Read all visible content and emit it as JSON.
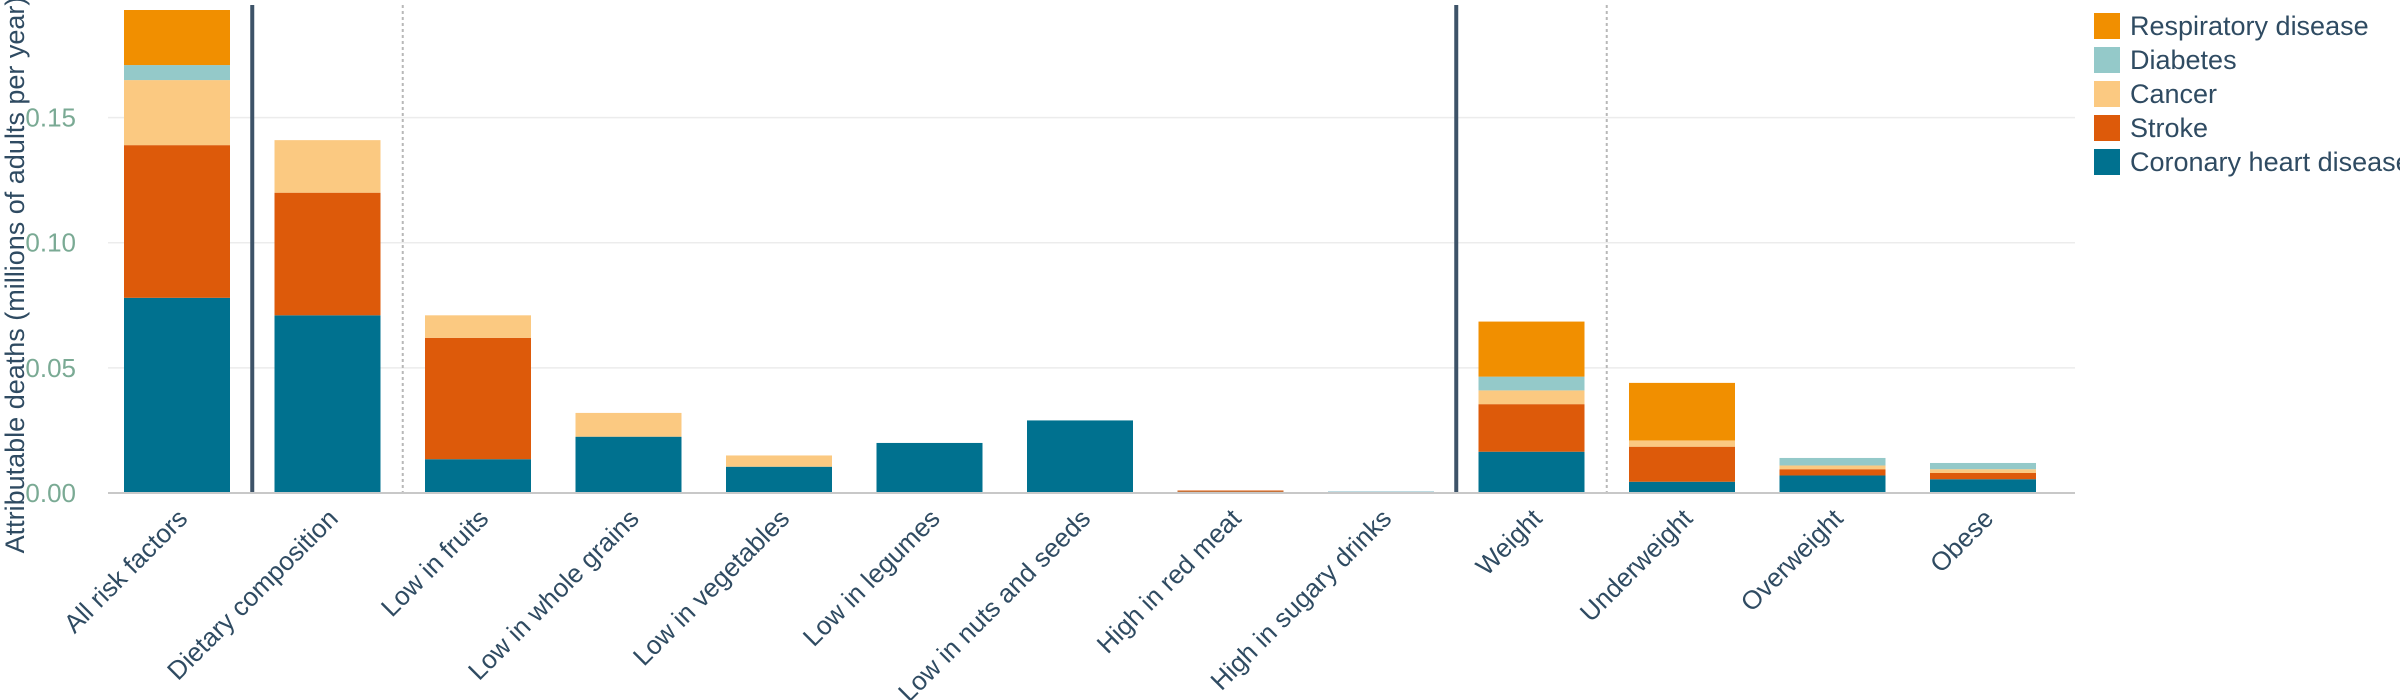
{
  "chart_data": {
    "type": "bar",
    "stacked": true,
    "title": "",
    "xlabel": "",
    "ylabel": "Attributable deaths (millions of adults per year)",
    "ylim": [
      0,
      0.195
    ],
    "yticks": [
      0,
      0.05,
      0.1,
      0.15
    ],
    "ytick_labels": [
      "0.00",
      "0.05",
      "0.10",
      "0.15"
    ],
    "grid": true,
    "legend_position": "top-right",
    "categories": [
      "All risk factors",
      "Dietary composition",
      "Low in fruits",
      "Low in whole grains",
      "Low in vegetables",
      "Low in legumes",
      "Low in nuts and seeds",
      "High in red meat",
      "High in sugary drinks",
      "Weight",
      "Underweight",
      "Overweight",
      "Obese"
    ],
    "series": [
      {
        "name": "Coronary heart disease",
        "color": "#00718f",
        "values": [
          0.078,
          0.071,
          0.0135,
          0.0225,
          0.0105,
          0.02,
          0.029,
          0.0005,
          0.0005,
          0.0165,
          0.0045,
          0.007,
          0.0055
        ]
      },
      {
        "name": "Stroke",
        "color": "#dd5a0a",
        "values": [
          0.061,
          0.049,
          0.0485,
          0,
          0,
          0,
          0,
          0.0005,
          0,
          0.019,
          0.014,
          0.0025,
          0.0025
        ]
      },
      {
        "name": "Cancer",
        "color": "#fbc981",
        "values": [
          0.026,
          0.021,
          0.009,
          0.0095,
          0.0045,
          0,
          0,
          0,
          0,
          0.0055,
          0.0025,
          0.0015,
          0.0015
        ]
      },
      {
        "name": "Diabetes",
        "color": "#94c9c9",
        "values": [
          0.006,
          0,
          0,
          0,
          0,
          0,
          0,
          0,
          0,
          0.0055,
          0,
          0.003,
          0.0025
        ]
      },
      {
        "name": "Respiratory disease",
        "color": "#f18f00",
        "values": [
          0.022,
          0,
          0,
          0,
          0,
          0,
          0,
          0,
          0,
          0.022,
          0.023,
          0,
          0
        ]
      }
    ],
    "separators": [
      {
        "after_index": 0,
        "style": "solid"
      },
      {
        "after_index": 1,
        "style": "dotted"
      },
      {
        "after_index": 8,
        "style": "solid"
      },
      {
        "after_index": 9,
        "style": "dotted"
      }
    ],
    "legend_order": [
      "Respiratory disease",
      "Diabetes",
      "Cancer",
      "Stroke",
      "Coronary heart disease"
    ]
  }
}
